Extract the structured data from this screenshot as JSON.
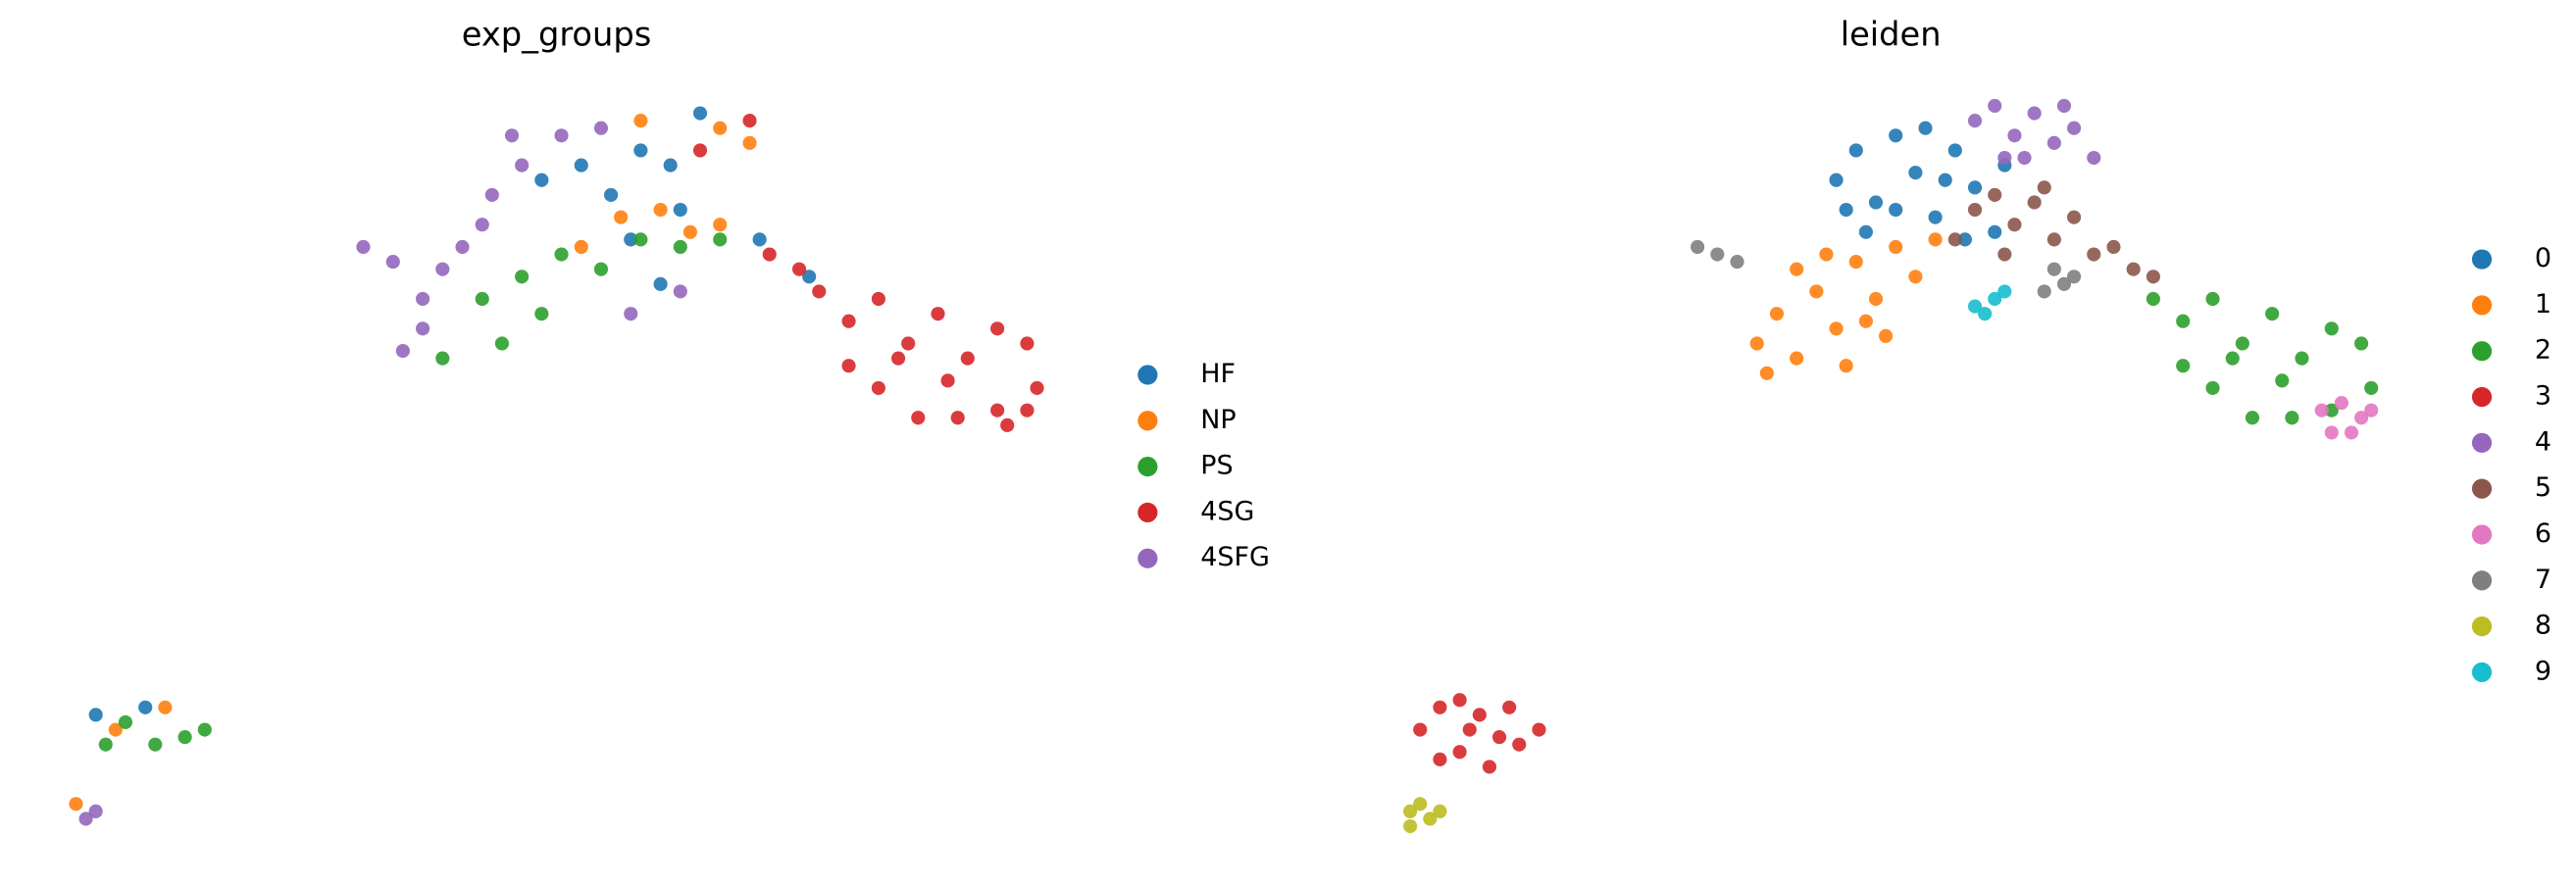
{
  "chart_data": [
    {
      "type": "scatter",
      "title": "exp_groups",
      "legend": "right",
      "xlim": [
        0,
        100
      ],
      "ylim": [
        0,
        100
      ],
      "series": [
        {
          "name": "HF",
          "color": "#1f77b4",
          "x": [
            48,
            52,
            55,
            58,
            61,
            64,
            57,
            62,
            70,
            75,
            3,
            8,
            60
          ],
          "y": [
            88,
            90,
            86,
            92,
            90,
            97,
            80,
            84,
            80,
            75,
            16,
            17,
            74
          ]
        },
        {
          "name": "NP",
          "color": "#ff7f0e",
          "x": [
            60,
            63,
            66,
            69,
            56,
            52,
            66,
            5,
            10,
            1,
            58
          ],
          "y": [
            84,
            81,
            95,
            93,
            83,
            79,
            82,
            14,
            17,
            4,
            96
          ]
        },
        {
          "name": "PS",
          "color": "#2ca02c",
          "x": [
            42,
            46,
            50,
            54,
            58,
            62,
            66,
            48,
            44,
            38,
            6,
            9,
            12,
            14,
            4
          ],
          "y": [
            72,
            75,
            78,
            76,
            80,
            79,
            80,
            70,
            66,
            64,
            15,
            12,
            13,
            14,
            12
          ]
        },
        {
          "name": "4SG",
          "color": "#d62728",
          "x": [
            64,
            69,
            71,
            74,
            76,
            79,
            82,
            85,
            88,
            91,
            94,
            97,
            98,
            94,
            90,
            86,
            82,
            79,
            89,
            84,
            95,
            97
          ],
          "y": [
            92,
            96,
            78,
            76,
            73,
            69,
            72,
            66,
            70,
            64,
            68,
            66,
            60,
            57,
            56,
            56,
            60,
            63,
            61,
            64,
            55,
            57
          ]
        },
        {
          "name": "4SFG",
          "color": "#9467bd",
          "x": [
            30,
            33,
            36,
            38,
            40,
            43,
            46,
            50,
            45,
            54,
            36,
            34,
            57,
            62,
            3,
            2,
            42
          ],
          "y": [
            79,
            77,
            72,
            76,
            79,
            86,
            90,
            94,
            94,
            95,
            68,
            65,
            70,
            73,
            3,
            2,
            82
          ]
        }
      ]
    },
    {
      "type": "scatter",
      "title": "leiden",
      "legend": "right",
      "xlim": [
        0,
        100
      ],
      "ylim": [
        0,
        100
      ],
      "series": [
        {
          "name": "0",
          "color": "#1f77b4",
          "x": [
            44,
            46,
            48,
            50,
            52,
            54,
            56,
            58,
            60,
            61,
            47,
            53,
            57,
            50,
            45,
            55
          ],
          "y": [
            88,
            92,
            85,
            94,
            89,
            83,
            92,
            87,
            81,
            90,
            81,
            95,
            80,
            84,
            84,
            88
          ]
        },
        {
          "name": "1",
          "color": "#ff7f0e",
          "x": [
            36,
            38,
            40,
            42,
            44,
            46,
            48,
            50,
            52,
            54,
            40,
            45,
            49,
            37,
            43,
            47
          ],
          "y": [
            66,
            70,
            64,
            73,
            68,
            77,
            72,
            79,
            75,
            80,
            76,
            63,
            67,
            62,
            78,
            69
          ]
        },
        {
          "name": "2",
          "color": "#2ca02c",
          "x": [
            76,
            79,
            82,
            85,
            88,
            91,
            94,
            97,
            98,
            94,
            90,
            86,
            82,
            79,
            89,
            84
          ],
          "y": [
            72,
            69,
            72,
            66,
            70,
            64,
            68,
            66,
            60,
            57,
            56,
            56,
            60,
            63,
            61,
            64
          ]
        },
        {
          "name": "3",
          "color": "#d62728",
          "x": [
            2,
            4,
            6,
            8,
            10,
            12,
            14,
            6,
            9,
            4,
            11,
            7
          ],
          "y": [
            14,
            17,
            18,
            16,
            13,
            12,
            14,
            11,
            9,
            10,
            17,
            14
          ]
        },
        {
          "name": "4",
          "color": "#9467bd",
          "x": [
            58,
            60,
            62,
            64,
            66,
            68,
            70,
            63,
            67,
            61
          ],
          "y": [
            96,
            98,
            94,
            97,
            93,
            95,
            91,
            91,
            98,
            91
          ]
        },
        {
          "name": "5",
          "color": "#8c564b",
          "x": [
            56,
            58,
            60,
            62,
            64,
            66,
            68,
            70,
            72,
            74,
            76,
            61,
            65
          ],
          "y": [
            80,
            84,
            86,
            82,
            85,
            80,
            83,
            78,
            79,
            76,
            75,
            78,
            87
          ]
        },
        {
          "name": "6",
          "color": "#e377c2",
          "x": [
            93,
            95,
            97,
            98,
            94,
            96
          ],
          "y": [
            57,
            58,
            56,
            57,
            54,
            54
          ]
        },
        {
          "name": "7",
          "color": "#7f7f7f",
          "x": [
            30,
            32,
            34,
            66,
            67,
            68,
            65
          ],
          "y": [
            79,
            78,
            77,
            76,
            74,
            75,
            73
          ]
        },
        {
          "name": "8",
          "color": "#bcbd22",
          "x": [
            1,
            2,
            3,
            4,
            1
          ],
          "y": [
            3,
            4,
            2,
            3,
            1
          ]
        },
        {
          "name": "9",
          "color": "#17becf",
          "x": [
            58,
            60,
            61,
            59
          ],
          "y": [
            71,
            72,
            73,
            70
          ]
        }
      ]
    }
  ]
}
